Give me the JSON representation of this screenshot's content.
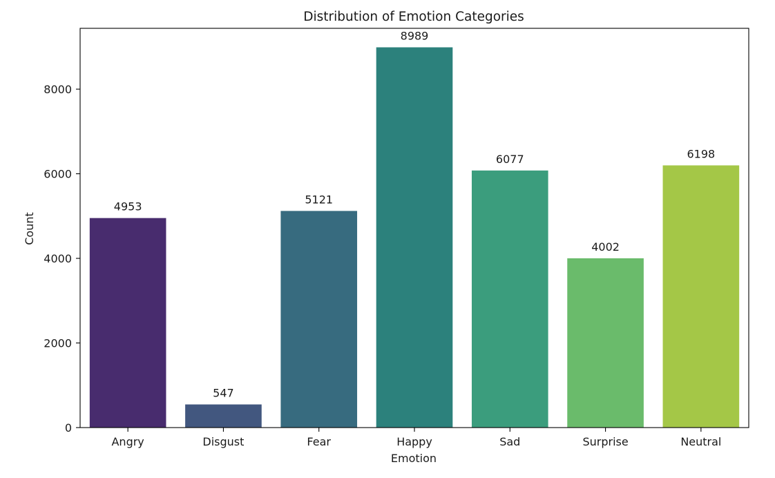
{
  "chart_data": {
    "type": "bar",
    "title": "Distribution of Emotion Categories",
    "xlabel": "Emotion",
    "ylabel": "Count",
    "categories": [
      "Angry",
      "Disgust",
      "Fear",
      "Happy",
      "Sad",
      "Surprise",
      "Neutral"
    ],
    "values": [
      4953,
      547,
      5121,
      8989,
      6077,
      4002,
      6198
    ],
    "data_labels": [
      "4953",
      "547",
      "5121",
      "8989",
      "6077",
      "4002",
      "6198"
    ],
    "colors": [
      "#482c6e",
      "#42577f",
      "#376b7f",
      "#2c817c",
      "#3b9d7d",
      "#6abb6b",
      "#a4c747"
    ],
    "ylim": [
      0,
      9438
    ],
    "yticks": [
      0,
      2000,
      4000,
      6000,
      8000
    ],
    "ytick_labels": [
      "0",
      "2000",
      "4000",
      "6000",
      "8000"
    ],
    "grid": false,
    "legend": "none"
  }
}
